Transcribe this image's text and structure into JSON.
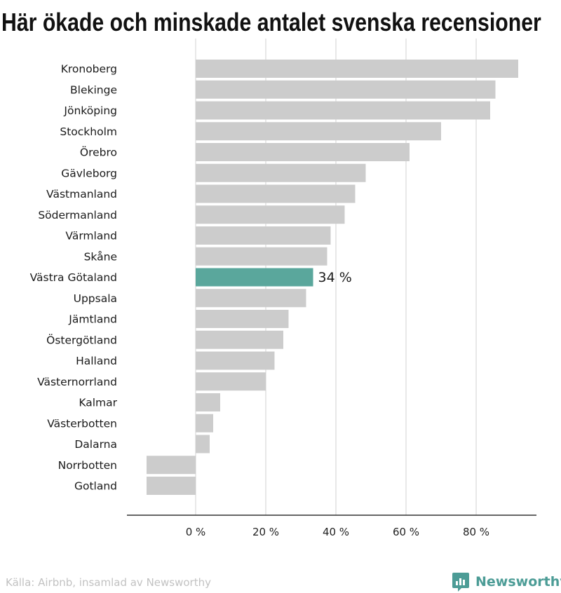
{
  "title": "Här ökade och minskade antalet svenska recensioner",
  "source": "Källa: Airbnb, insamlad av Newsworthy",
  "brand": {
    "name": "Newsworthy",
    "color": "#4c9c96",
    "icon": "newsworthy-logo-icon"
  },
  "chart_data": {
    "type": "bar",
    "orientation": "horizontal",
    "categories": [
      "Kronoberg",
      "Blekinge",
      "Jönköping",
      "Stockholm",
      "Örebro",
      "Gävleborg",
      "Västmanland",
      "Södermanland",
      "Värmland",
      "Skåne",
      "Västra Götaland",
      "Uppsala",
      "Jämtland",
      "Östergötland",
      "Halland",
      "Västernorrland",
      "Kalmar",
      "Västerbotten",
      "Dalarna",
      "Norrbotten",
      "Gotland"
    ],
    "values": [
      92,
      85.5,
      84,
      70,
      61,
      48.5,
      45.5,
      42.5,
      38.5,
      37.5,
      33.5,
      31.5,
      26.5,
      25,
      22.5,
      20,
      7,
      5,
      4,
      -14,
      -14
    ],
    "highlight": {
      "category": "Västra Götaland",
      "label": "34 %"
    },
    "xticks": [
      0,
      20,
      40,
      60,
      80
    ],
    "xtick_labels": [
      "0 %",
      "20 %",
      "40 %",
      "60 %",
      "80 %"
    ],
    "xlim": [
      -20,
      97
    ],
    "grid": "vertical",
    "colors": {
      "bar": "#cccccc",
      "highlight": "#5aa79c",
      "grid": "#e1e1e1",
      "axis": "#333333"
    }
  }
}
